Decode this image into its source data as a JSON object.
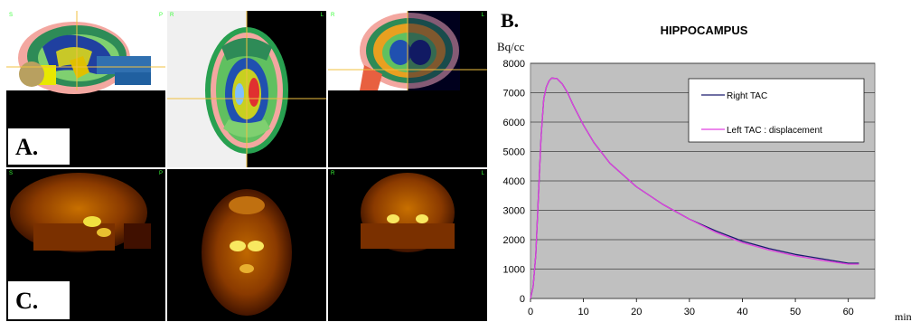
{
  "figure_labels": {
    "a": "A.",
    "b": "B.",
    "c": "C."
  },
  "mri_views": [
    {
      "name": "sagittal",
      "left_marker": "S",
      "right_marker": "P"
    },
    {
      "name": "axial",
      "left_marker": "R",
      "right_marker": "L"
    },
    {
      "name": "coronal",
      "left_marker": "R",
      "right_marker": "L"
    }
  ],
  "pet_views": [
    {
      "name": "sagittal",
      "left_marker": "S",
      "right_marker": "P"
    },
    {
      "name": "axial",
      "left_marker": "",
      "right_marker": ""
    },
    {
      "name": "coronal",
      "left_marker": "R",
      "right_marker": "L"
    }
  ],
  "colors": {
    "crosshair": "#f0c040",
    "plot_background": "#c0c0c0",
    "right_tac": "#1a1a6e",
    "left_tac": "#e040e0"
  },
  "chart_data": {
    "type": "line",
    "title": "HIPPOCAMPUS",
    "ylabel": "Bq/cc",
    "xlabel": "min",
    "xlim": [
      0,
      65
    ],
    "ylim": [
      0,
      8000
    ],
    "x_ticks": [
      "0",
      "10",
      "20",
      "30",
      "40",
      "50",
      "60"
    ],
    "y_ticks": [
      "0",
      "1000",
      "2000",
      "3000",
      "4000",
      "5000",
      "6000",
      "7000",
      "8000"
    ],
    "grid": true,
    "legend_position": "top-right",
    "series": [
      {
        "name": "Right TAC",
        "color": "#1a1a6e",
        "x": [
          0,
          0.5,
          1,
          1.5,
          2,
          2.5,
          3,
          3.5,
          4,
          5,
          6,
          7,
          8,
          10,
          12,
          15,
          20,
          25,
          30,
          35,
          40,
          45,
          50,
          55,
          60,
          62
        ],
        "y": [
          0,
          400,
          1500,
          3500,
          5500,
          6800,
          7200,
          7400,
          7500,
          7480,
          7300,
          7000,
          6600,
          5900,
          5300,
          4600,
          3800,
          3200,
          2700,
          2300,
          1950,
          1700,
          1500,
          1350,
          1200,
          1200
        ]
      },
      {
        "name": "Left TAC : displacement",
        "color": "#e040e0",
        "x": [
          0,
          0.5,
          1,
          1.5,
          2,
          2.5,
          3,
          3.5,
          4,
          5,
          6,
          7,
          8,
          10,
          12,
          15,
          20,
          25,
          30,
          35,
          40,
          45,
          50,
          55,
          60,
          62
        ],
        "y": [
          0,
          400,
          1500,
          3500,
          5500,
          6800,
          7200,
          7400,
          7500,
          7480,
          7300,
          7000,
          6600,
          5900,
          5300,
          4600,
          3800,
          3200,
          2700,
          2250,
          1900,
          1650,
          1450,
          1300,
          1170,
          1170
        ]
      }
    ]
  }
}
